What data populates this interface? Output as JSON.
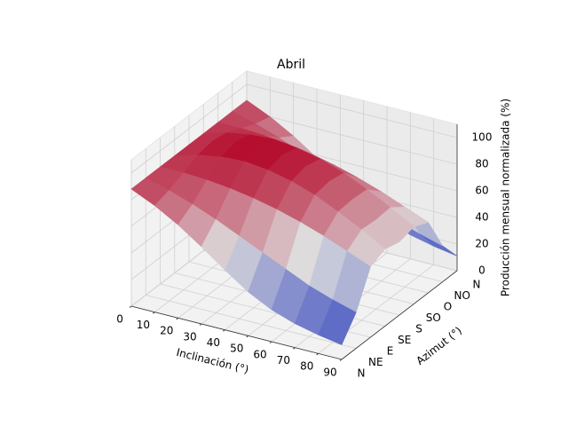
{
  "chart_data": {
    "type": "surface",
    "title": "Abril",
    "xlabel": "Inclinación (°)",
    "ylabel": "Azimut (°)",
    "zlabel": "Producción mensual normalizada (%)",
    "x": [
      0,
      10,
      20,
      30,
      40,
      50,
      60,
      70,
      80,
      90
    ],
    "categories": [
      "N",
      "NE",
      "E",
      "SE",
      "S",
      "SO",
      "O",
      "NO",
      "N"
    ],
    "z": [
      [
        88,
        88,
        88,
        88,
        88,
        88,
        88,
        88,
        88
      ],
      [
        80,
        83,
        88,
        93,
        95,
        93,
        88,
        83,
        80
      ],
      [
        70,
        77,
        87,
        96,
        99,
        96,
        87,
        77,
        70
      ],
      [
        58,
        70,
        85,
        97,
        100,
        97,
        85,
        70,
        58
      ],
      [
        45,
        62,
        82,
        95,
        98,
        95,
        82,
        62,
        45
      ],
      [
        33,
        54,
        78,
        91,
        94,
        91,
        78,
        54,
        33
      ],
      [
        24,
        46,
        73,
        85,
        87,
        85,
        73,
        46,
        24
      ],
      [
        18,
        38,
        67,
        77,
        78,
        77,
        67,
        38,
        18
      ],
      [
        14,
        32,
        60,
        68,
        67,
        68,
        60,
        32,
        14
      ],
      [
        11,
        27,
        53,
        58,
        55,
        58,
        53,
        27,
        11
      ]
    ],
    "xlim": [
      0,
      90
    ],
    "xticks": [
      0,
      10,
      20,
      30,
      40,
      50,
      60,
      70,
      80,
      90
    ],
    "zlim": [
      0,
      110
    ],
    "zticks": [
      0,
      20,
      40,
      60,
      80,
      100
    ],
    "grid": true
  }
}
